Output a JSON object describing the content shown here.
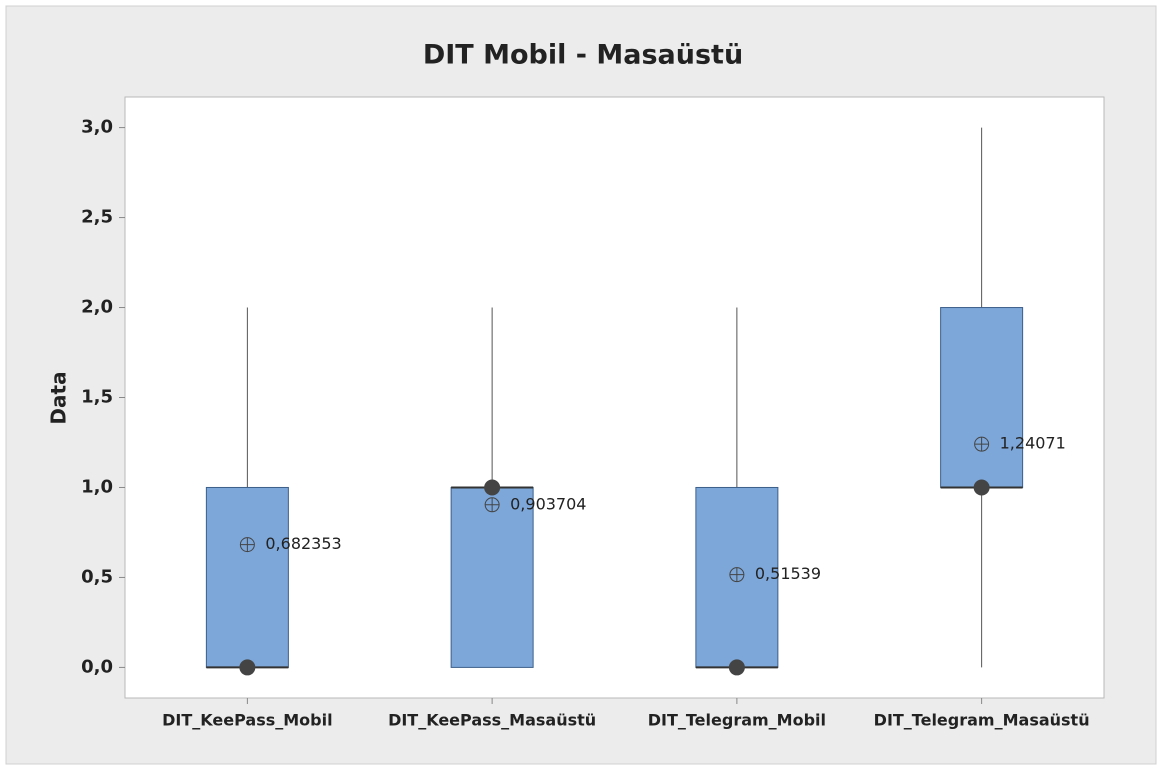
{
  "chart_data": {
    "type": "box",
    "title": "DIT Mobil - Masaüstü",
    "ylabel": "Data",
    "categories": [
      "DIT_KeePass_Mobil",
      "DIT_KeePass_Masaüstü",
      "DIT_Telegram_Mobil",
      "DIT_Telegram_Masaüstü"
    ],
    "min": [
      0,
      0,
      0,
      0
    ],
    "q1": [
      0,
      0,
      0,
      1
    ],
    "median": [
      0,
      1,
      0,
      1
    ],
    "q3": [
      1,
      1,
      1,
      2
    ],
    "max": [
      2,
      2,
      2,
      3
    ],
    "mean": [
      0.682353,
      0.903704,
      0.51539,
      1.24071
    ],
    "value_labels": [
      "0,682353",
      "0,903704",
      "0,51539",
      "1,24071"
    ],
    "color": "#7da7d9",
    "ylim": [
      -0.17,
      3.17
    ],
    "yticks": [
      {
        "value": 0,
        "label": "0,0"
      },
      {
        "value": 0.5,
        "label": "0,5"
      },
      {
        "value": 1,
        "label": "1,0"
      },
      {
        "value": 1.5,
        "label": "1,5"
      },
      {
        "value": 2,
        "label": "2,0"
      },
      {
        "value": 2.5,
        "label": "2,5"
      },
      {
        "value": 3,
        "label": "3,0"
      }
    ],
    "grid": false
  }
}
